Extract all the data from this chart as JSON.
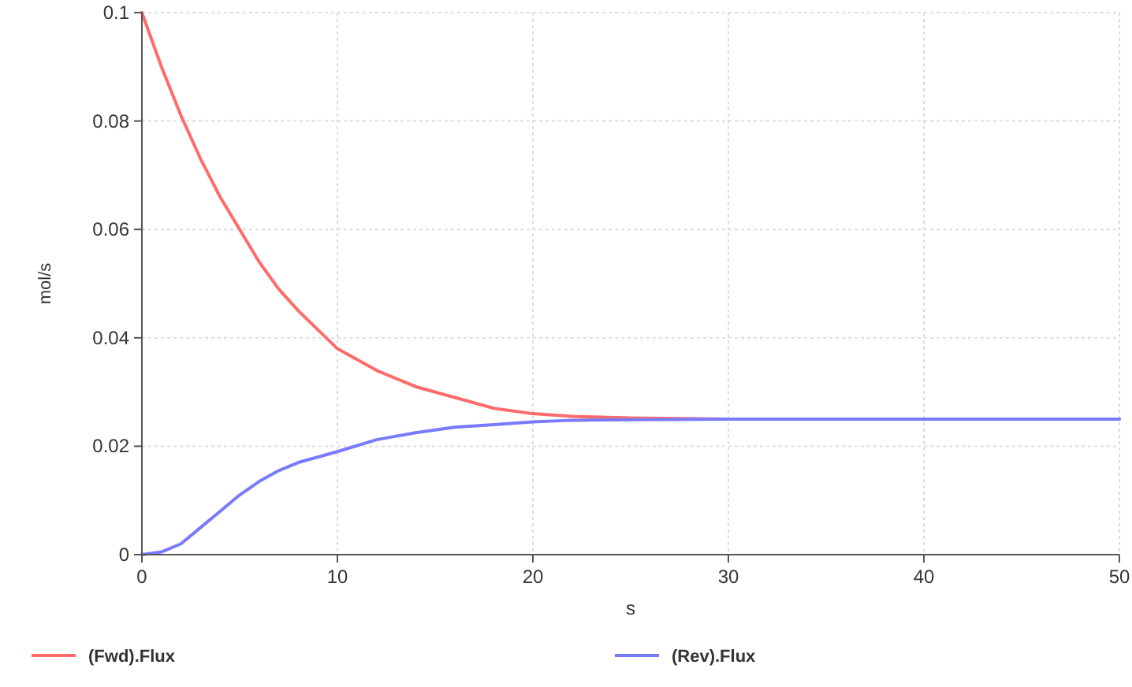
{
  "chart_data": {
    "type": "line",
    "xlabel": "s",
    "ylabel": "mol/s",
    "xlim": [
      0,
      50
    ],
    "xticks": [
      0,
      10,
      20,
      30,
      40,
      50
    ],
    "ylim": [
      0,
      0.1
    ],
    "yticks": [
      0,
      0.02,
      0.04,
      0.06,
      0.08,
      0.1
    ],
    "grid": true,
    "legend": "bottom",
    "x": [
      0,
      1,
      2,
      3,
      4,
      5,
      6,
      7,
      8,
      10,
      12,
      14,
      16,
      18,
      20,
      22,
      25,
      30,
      40,
      50
    ],
    "series": [
      {
        "name": "(Fwd).Flux",
        "color": "#ff6b6b",
        "values": [
          0.1,
          0.09,
          0.081,
          0.073,
          0.066,
          0.06,
          0.054,
          0.049,
          0.045,
          0.038,
          0.034,
          0.031,
          0.029,
          0.027,
          0.026,
          0.0255,
          0.0252,
          0.025,
          0.025,
          0.025
        ]
      },
      {
        "name": "(Rev).Flux",
        "color": "#7a7aff",
        "values": [
          0,
          0.0005,
          0.002,
          0.005,
          0.008,
          0.011,
          0.0135,
          0.0155,
          0.017,
          0.019,
          0.0212,
          0.0225,
          0.0235,
          0.024,
          0.0245,
          0.0248,
          0.0249,
          0.025,
          0.025,
          0.025
        ]
      }
    ]
  }
}
